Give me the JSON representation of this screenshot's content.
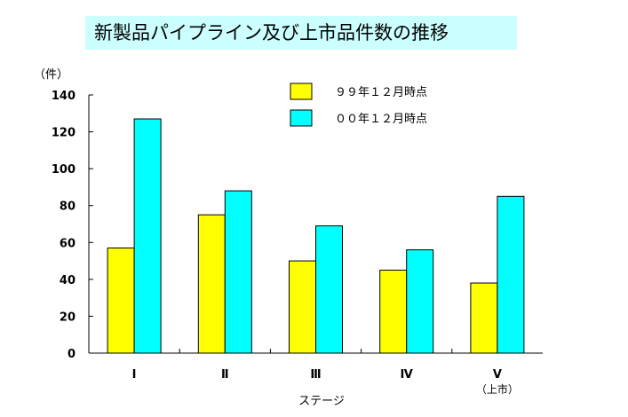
{
  "chart_data": {
    "type": "bar",
    "title": "新製品パイプライン及び上市品件数の推移",
    "ylabel": "（件）",
    "xlabel": "ステージ",
    "categories": [
      "Ⅰ",
      "Ⅱ",
      "Ⅲ",
      "Ⅳ",
      "Ⅴ"
    ],
    "category_sublabels": [
      "",
      "",
      "",
      "",
      "（上市）"
    ],
    "ylim": [
      0,
      140
    ],
    "yticks": [
      0,
      20,
      40,
      60,
      80,
      100,
      120,
      140
    ],
    "grid": false,
    "legend_position": "top-right",
    "series": [
      {
        "name": "９９年１２月時点",
        "color": "#ffff00",
        "values": [
          57,
          75,
          50,
          45,
          38
        ]
      },
      {
        "name": "００年１２月時点",
        "color": "#00ffff",
        "values": [
          127,
          88,
          69,
          56,
          85
        ]
      }
    ]
  }
}
